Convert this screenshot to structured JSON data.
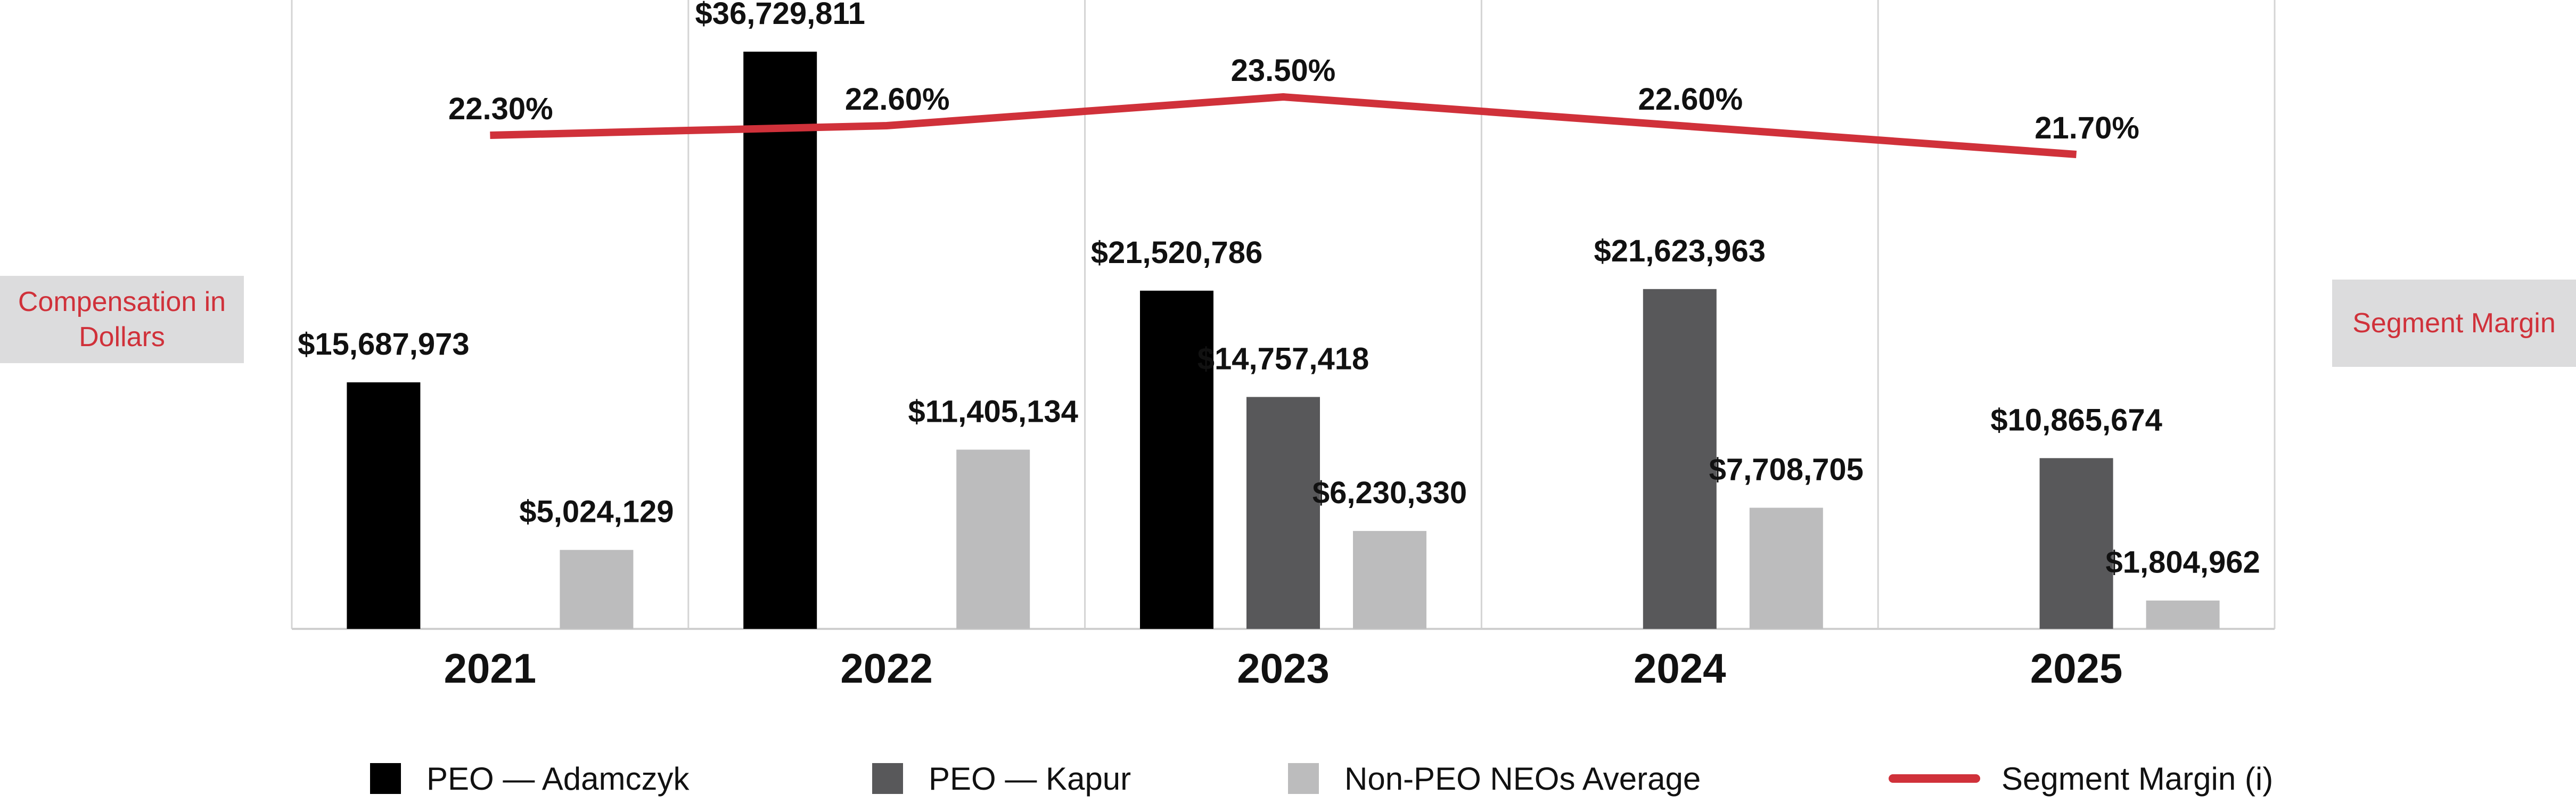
{
  "chart_data": {
    "type": "bar",
    "categories": [
      "2021",
      "2022",
      "2023",
      "2024",
      "2025"
    ],
    "ylabel": "Compensation in Dollars",
    "y2label": "Segment Margin",
    "ylim": [
      0,
      38500000
    ],
    "y2lim": [
      10,
      30
    ],
    "grid": "vertical separators between years",
    "legend_position": "bottom",
    "series": [
      {
        "name": "PEO — Adamczyk",
        "kind": "bar",
        "color": "#000000",
        "values": [
          15687973,
          36729811,
          21520786,
          null,
          null
        ],
        "labels": [
          "$15,687,973",
          "$36,729,811",
          "$21,520,786",
          "",
          ""
        ]
      },
      {
        "name": "PEO — Kapur",
        "kind": "bar",
        "color": "#58585a",
        "values": [
          null,
          null,
          14757418,
          21623963,
          10865674
        ],
        "labels": [
          "",
          "",
          "$14,757,418",
          "$21,623,963",
          "$10,865,674"
        ]
      },
      {
        "name": "Non-PEO NEOs Average",
        "kind": "bar",
        "color": "#bcbcbd",
        "values": [
          5024129,
          11405134,
          6230330,
          7708705,
          1804962
        ],
        "labels": [
          "$5,024,129",
          "$11,405,134",
          "$6,230,330",
          "$7,708,705",
          "$1,804,962"
        ]
      },
      {
        "name": "Segment Margin (i)",
        "kind": "line",
        "axis": "right",
        "color": "#d0313a",
        "values": [
          22.3,
          22.6,
          23.5,
          22.6,
          21.7
        ],
        "labels": [
          "22.30%",
          "22.60%",
          "23.50%",
          "22.60%",
          "21.70%"
        ]
      }
    ]
  }
}
